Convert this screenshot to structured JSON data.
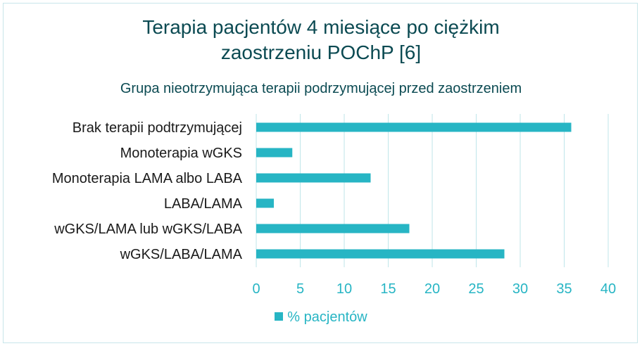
{
  "chart_data": {
    "type": "bar",
    "orientation": "horizontal",
    "title_lines": [
      "Terapia pacjentów 4 miesiące po ciężkim",
      "zaostrzeniu POChP [6]"
    ],
    "subtitle": "Grupa nieotrzymująca terapii podrzymującej przed zaostrzeniem",
    "categories": [
      "Brak terapii podtrzymującej",
      "Monoterapia wGKS",
      "Monoterapia LAMA albo LABA",
      "LABA/LAMA",
      "wGKS/LAMA lub wGKS/LABA",
      "wGKS/LABA/LAMA"
    ],
    "series": [
      {
        "name": "% pacjentów",
        "values": [
          35.8,
          4.1,
          13.0,
          2.0,
          17.4,
          28.2
        ]
      }
    ],
    "xlim": [
      0,
      40
    ],
    "xticks": [
      0,
      5,
      10,
      15,
      20,
      25,
      30,
      35,
      40
    ],
    "xtick_labels": [
      "0",
      "5",
      "10",
      "15",
      "20",
      "25",
      "30",
      "35",
      "40"
    ],
    "grid": "vertical",
    "legend_position": "bottom",
    "colors": {
      "bar": "#27b5c4",
      "grid": "#bfe6ea",
      "title": "#0b4a52",
      "category_text": "#1a1a1a",
      "tick_text": "#27b5c4"
    }
  }
}
